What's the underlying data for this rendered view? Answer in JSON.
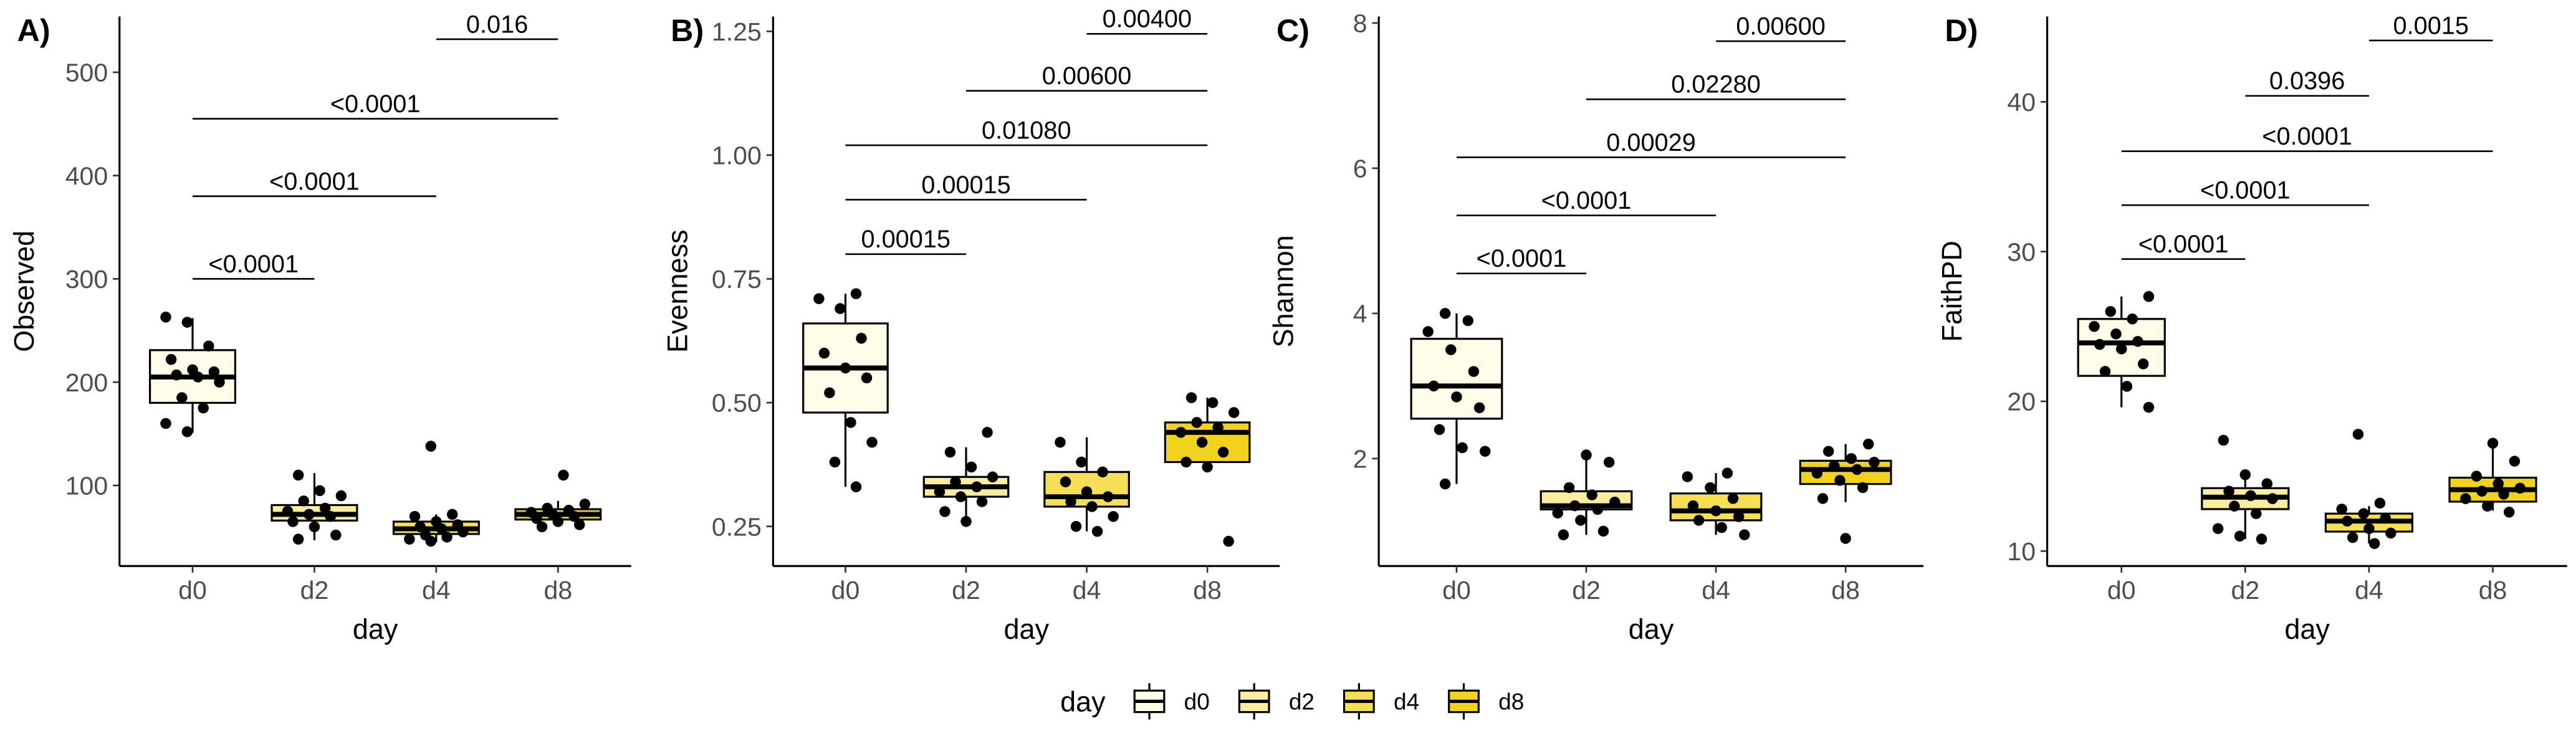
{
  "chart_data": [
    {
      "type": "box",
      "title": "A)",
      "ylabel": "Observed",
      "xlabel": "day",
      "categories": [
        "d0",
        "d2",
        "d4",
        "d8"
      ],
      "ylim": [
        22,
        554
      ],
      "yticks": [
        100,
        200,
        300,
        400,
        500
      ],
      "boxes": [
        {
          "whislo": 151,
          "q1": 180,
          "med": 205,
          "q3": 231,
          "whishi": 262,
          "points": [
            263,
            258,
            235,
            222,
            212,
            210,
            207,
            205,
            200,
            185,
            175,
            160,
            152
          ]
        },
        {
          "whislo": 47,
          "q1": 66,
          "med": 72,
          "q3": 81,
          "whishi": 112,
          "points": [
            110,
            95,
            90,
            85,
            78,
            75,
            72,
            70,
            65,
            60,
            52,
            48
          ]
        },
        {
          "whislo": 45,
          "q1": 53,
          "med": 58,
          "q3": 65,
          "whishi": 72,
          "points": [
            138,
            72,
            70,
            65,
            62,
            60,
            58,
            55,
            52,
            50,
            48,
            46
          ]
        },
        {
          "whislo": 60,
          "q1": 67,
          "med": 72,
          "q3": 77,
          "whishi": 85,
          "points": [
            110,
            82,
            78,
            76,
            74,
            72,
            70,
            68,
            65,
            62,
            60
          ]
        }
      ],
      "comparisons": [
        {
          "groups": [
            "d0",
            "d2"
          ],
          "y": 300,
          "label": "<0.0001"
        },
        {
          "groups": [
            "d0",
            "d4"
          ],
          "y": 380,
          "label": "<0.0001"
        },
        {
          "groups": [
            "d0",
            "d8"
          ],
          "y": 455,
          "label": "<0.0001"
        },
        {
          "groups": [
            "d4",
            "d8"
          ],
          "y": 532,
          "label": "0.016"
        }
      ]
    },
    {
      "type": "box",
      "title": "B)",
      "ylabel": "Evenness",
      "xlabel": "day",
      "categories": [
        "d0",
        "d2",
        "d4",
        "d8"
      ],
      "ylim": [
        0.17,
        1.28
      ],
      "yticks": [
        0.25,
        {
          "value": 0.5,
          "label": "0.50"
        },
        0.75,
        {
          "value": 1,
          "label": "1.00"
        },
        1.25
      ],
      "boxes": [
        {
          "whislo": 0.33,
          "q1": 0.48,
          "med": 0.57,
          "q3": 0.66,
          "whishi": 0.72,
          "points": [
            0.72,
            0.71,
            0.69,
            0.63,
            0.6,
            0.57,
            0.55,
            0.52,
            0.46,
            0.42,
            0.38,
            0.33
          ]
        },
        {
          "whislo": 0.26,
          "q1": 0.31,
          "med": 0.33,
          "q3": 0.35,
          "whishi": 0.41,
          "points": [
            0.44,
            0.4,
            0.37,
            0.35,
            0.34,
            0.33,
            0.32,
            0.31,
            0.3,
            0.28,
            0.26
          ]
        },
        {
          "whislo": 0.24,
          "q1": 0.29,
          "med": 0.31,
          "q3": 0.36,
          "whishi": 0.43,
          "points": [
            0.42,
            0.38,
            0.36,
            0.34,
            0.32,
            0.31,
            0.3,
            0.29,
            0.27,
            0.25,
            0.24
          ]
        },
        {
          "whislo": 0.37,
          "q1": 0.38,
          "med": 0.44,
          "q3": 0.46,
          "whishi": 0.51,
          "points": [
            0.51,
            0.5,
            0.48,
            0.46,
            0.45,
            0.44,
            0.42,
            0.4,
            0.38,
            0.37,
            0.22
          ]
        }
      ],
      "comparisons": [
        {
          "groups": [
            "d0",
            "d2"
          ],
          "y": 0.8,
          "label": "0.00015"
        },
        {
          "groups": [
            "d0",
            "d4"
          ],
          "y": 0.91,
          "label": "0.00015"
        },
        {
          "groups": [
            "d0",
            "d8"
          ],
          "y": 1.02,
          "label": "0.01080"
        },
        {
          "groups": [
            "d2",
            "d8"
          ],
          "y": 1.13,
          "label": "0.00600"
        },
        {
          "groups": [
            "d4",
            "d8"
          ],
          "y": 1.245,
          "label": "0.00400"
        }
      ]
    },
    {
      "type": "box",
      "title": "C)",
      "ylabel": "Shannon",
      "xlabel": "day",
      "categories": [
        "d0",
        "d2",
        "d4",
        "d8"
      ],
      "ylim": [
        0.52,
        8.09
      ],
      "yticks": [
        2,
        4,
        6,
        8
      ],
      "boxes": [
        {
          "whislo": 1.65,
          "q1": 2.55,
          "med": 3.0,
          "q3": 3.65,
          "whishi": 4.0,
          "points": [
            4.0,
            3.9,
            3.75,
            3.5,
            3.2,
            3.0,
            2.85,
            2.7,
            2.4,
            2.15,
            2.1,
            1.65
          ]
        },
        {
          "whislo": 0.95,
          "q1": 1.3,
          "med": 1.35,
          "q3": 1.55,
          "whishi": 2.0,
          "points": [
            2.05,
            1.95,
            1.6,
            1.5,
            1.4,
            1.35,
            1.3,
            1.25,
            1.15,
            1.0,
            0.95
          ]
        },
        {
          "whislo": 0.95,
          "q1": 1.15,
          "med": 1.28,
          "q3": 1.52,
          "whishi": 1.8,
          "points": [
            1.8,
            1.75,
            1.6,
            1.45,
            1.35,
            1.28,
            1.2,
            1.15,
            1.05,
            0.95
          ]
        },
        {
          "whislo": 1.4,
          "q1": 1.65,
          "med": 1.85,
          "q3": 1.97,
          "whishi": 2.2,
          "points": [
            2.2,
            2.1,
            2.0,
            1.95,
            1.9,
            1.85,
            1.8,
            1.7,
            1.6,
            1.45,
            0.9
          ]
        }
      ],
      "comparisons": [
        {
          "groups": [
            "d0",
            "d2"
          ],
          "y": 4.55,
          "label": "<0.0001"
        },
        {
          "groups": [
            "d0",
            "d4"
          ],
          "y": 5.35,
          "label": "<0.0001"
        },
        {
          "groups": [
            "d0",
            "d8"
          ],
          "y": 6.15,
          "label": "0.00029"
        },
        {
          "groups": [
            "d2",
            "d8"
          ],
          "y": 6.95,
          "label": "0.02280"
        },
        {
          "groups": [
            "d4",
            "d8"
          ],
          "y": 7.75,
          "label": "0.00600"
        }
      ]
    },
    {
      "type": "box",
      "title": "D)",
      "ylabel": "FaithPD",
      "xlabel": "day",
      "categories": [
        "d0",
        "d2",
        "d4",
        "d8"
      ],
      "ylim": [
        9,
        45.7
      ],
      "yticks": [
        10,
        20,
        30,
        40
      ],
      "boxes": [
        {
          "whislo": 19.6,
          "q1": 21.7,
          "med": 23.9,
          "q3": 25.5,
          "whishi": 27,
          "points": [
            27,
            26,
            25.5,
            25,
            24.5,
            24,
            23.8,
            23.5,
            22.5,
            22,
            21,
            19.6
          ]
        },
        {
          "whislo": 10.8,
          "q1": 12.8,
          "med": 13.6,
          "q3": 14.2,
          "whishi": 15.1,
          "points": [
            17.4,
            15.1,
            14.5,
            14,
            13.7,
            13.5,
            13,
            12.5,
            11.5,
            11,
            10.8
          ]
        },
        {
          "whislo": 10.5,
          "q1": 11.3,
          "med": 12,
          "q3": 12.5,
          "whishi": 13,
          "points": [
            17.8,
            13.2,
            12.8,
            12.5,
            12.2,
            12,
            11.5,
            11.2,
            10.9,
            10.5
          ]
        },
        {
          "whislo": 12.7,
          "q1": 13.3,
          "med": 14.1,
          "q3": 14.9,
          "whishi": 17,
          "points": [
            17.2,
            16,
            15,
            14.5,
            14.2,
            14,
            13.8,
            13.5,
            13,
            12.6
          ]
        }
      ],
      "comparisons": [
        {
          "groups": [
            "d0",
            "d2"
          ],
          "y": 29.5,
          "label": "<0.0001"
        },
        {
          "groups": [
            "d0",
            "d4"
          ],
          "y": 33.1,
          "label": "<0.0001"
        },
        {
          "groups": [
            "d0",
            "d8"
          ],
          "y": 36.7,
          "label": "<0.0001"
        },
        {
          "groups": [
            "d2",
            "d4"
          ],
          "y": 40.4,
          "label": "0.0396"
        },
        {
          "groups": [
            "d4",
            "d8"
          ],
          "y": 44.1,
          "label": "0.0015"
        }
      ]
    }
  ],
  "legend": {
    "title": "day",
    "entries": [
      {
        "name": "d0",
        "color": "#fffde8"
      },
      {
        "name": "d2",
        "color": "#fcec9e"
      },
      {
        "name": "d4",
        "color": "#f7df55"
      },
      {
        "name": "d8",
        "color": "#f2d21c"
      }
    ]
  }
}
